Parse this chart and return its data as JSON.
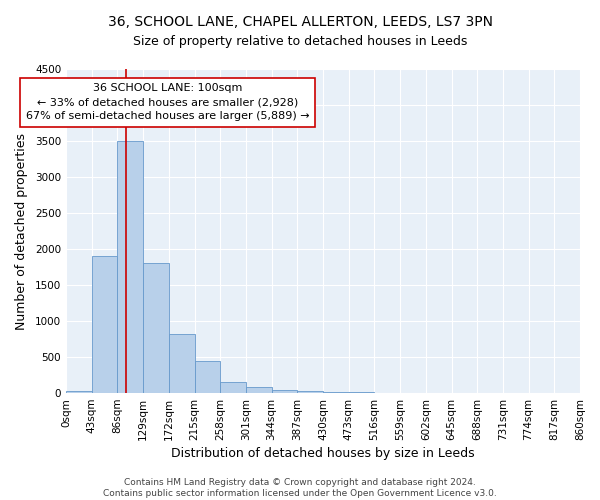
{
  "title_line1": "36, SCHOOL LANE, CHAPEL ALLERTON, LEEDS, LS7 3PN",
  "title_line2": "Size of property relative to detached houses in Leeds",
  "xlabel": "Distribution of detached houses by size in Leeds",
  "ylabel": "Number of detached properties",
  "bar_color": "#b8d0ea",
  "bar_edge_color": "#6699cc",
  "bg_color": "#e8f0f8",
  "grid_color": "#ffffff",
  "bin_edges": [
    0,
    43,
    86,
    129,
    172,
    215,
    258,
    301,
    344,
    387,
    430,
    473,
    516,
    559,
    602,
    645,
    688,
    731,
    774,
    817,
    860
  ],
  "bar_heights": [
    25,
    1900,
    3500,
    1800,
    820,
    450,
    150,
    90,
    45,
    30,
    20,
    10,
    3,
    2,
    1,
    1,
    0,
    0,
    0,
    0
  ],
  "tick_labels": [
    "0sqm",
    "43sqm",
    "86sqm",
    "129sqm",
    "172sqm",
    "215sqm",
    "258sqm",
    "301sqm",
    "344sqm",
    "387sqm",
    "430sqm",
    "473sqm",
    "516sqm",
    "559sqm",
    "602sqm",
    "645sqm",
    "688sqm",
    "731sqm",
    "774sqm",
    "817sqm",
    "860sqm"
  ],
  "property_size": 100,
  "red_line_color": "#cc0000",
  "annotation_line1": "36 SCHOOL LANE: 100sqm",
  "annotation_line2": "← 33% of detached houses are smaller (2,928)",
  "annotation_line3": "67% of semi-detached houses are larger (5,889) →",
  "annotation_box_color": "#ffffff",
  "annotation_box_edge_color": "#cc0000",
  "ylim": [
    0,
    4500
  ],
  "yticks": [
    0,
    500,
    1000,
    1500,
    2000,
    2500,
    3000,
    3500,
    4000,
    4500
  ],
  "footer_line1": "Contains HM Land Registry data © Crown copyright and database right 2024.",
  "footer_line2": "Contains public sector information licensed under the Open Government Licence v3.0.",
  "title_fontsize": 10,
  "subtitle_fontsize": 9,
  "axis_label_fontsize": 9,
  "tick_fontsize": 7.5,
  "annotation_fontsize": 8,
  "footer_fontsize": 6.5
}
